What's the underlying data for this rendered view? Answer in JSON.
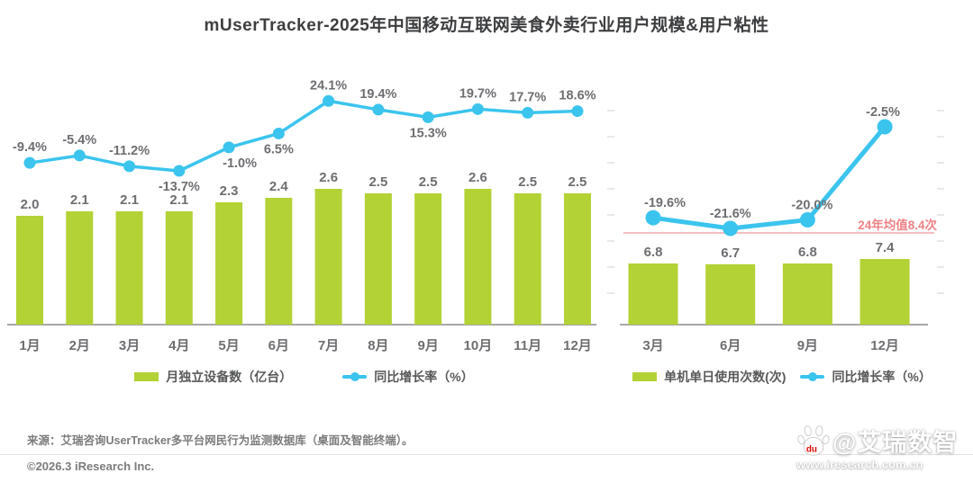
{
  "title": "mUserTracker-2025年中国移动互联网美食外卖行业用户规模&用户粘性",
  "colors": {
    "bar": "#b2d235",
    "line": "#3bc4ee",
    "value_label": "#6d6e71",
    "axis_label": "#6d6e71",
    "baseline": "#8a8b8d",
    "tick": "#e9e9e9",
    "avg_text_pink": "#ee8285",
    "avg_line_pink": "#f5bfc1",
    "title_text": "#3d3e40",
    "legend_text": "#58595b",
    "footer_text": "#7b7c7e"
  },
  "chart_data": [
    {
      "type": "bar+line",
      "categories": [
        "1月",
        "2月",
        "3月",
        "4月",
        "5月",
        "6月",
        "7月",
        "8月",
        "9月",
        "10月",
        "11月",
        "12月"
      ],
      "series": [
        {
          "name": "月独立设备数（亿台）",
          "type": "bar",
          "values": [
            2.0,
            2.1,
            2.1,
            2.1,
            2.3,
            2.4,
            2.6,
            2.5,
            2.5,
            2.6,
            2.5,
            2.5
          ],
          "labels": [
            "2.0",
            "2.1",
            "2.1",
            "2.1",
            "2.3",
            "2.4",
            "2.6",
            "2.5",
            "2.5",
            "2.6",
            "2.5",
            "2.5"
          ]
        },
        {
          "name": "同比增长率（%）",
          "type": "line",
          "values": [
            -9.4,
            -5.4,
            -11.2,
            -13.7,
            -1.0,
            6.5,
            24.1,
            19.4,
            15.3,
            19.7,
            17.7,
            18.6
          ],
          "labels": [
            "-9.4%",
            "-5.4%",
            "-11.2%",
            "-13.7%",
            "-1.0%",
            "6.5%",
            "24.1%",
            "19.4%",
            "15.3%",
            "19.7%",
            "17.7%",
            "18.6%"
          ]
        }
      ],
      "grid": false,
      "axes_visible": false,
      "legend_position": "bottom"
    },
    {
      "type": "bar+line",
      "categories": [
        "3月",
        "6月",
        "9月",
        "12月"
      ],
      "series": [
        {
          "name": "单机单日使用次数(次)",
          "type": "bar",
          "values": [
            6.8,
            6.7,
            6.8,
            7.4
          ],
          "labels": [
            "6.8",
            "6.7",
            "6.8",
            "7.4"
          ]
        },
        {
          "name": "同比增长率（%）",
          "type": "line",
          "values": [
            -19.6,
            -21.6,
            -20.0,
            -2.5
          ],
          "labels": [
            "-19.6%",
            "-21.6%",
            "-20.0%",
            "-2.5%"
          ]
        }
      ],
      "annotation": {
        "label": "24年均值8.4次",
        "value": 8.4
      },
      "grid": false,
      "axes_visible": false,
      "legend_position": "bottom"
    }
  ],
  "footer": {
    "source": "来源：艾瑞咨询UserTracker多平台网民行为监测数据库（桌面及智能终端）。",
    "copyright": "©2026.3 iResearch Inc.",
    "watermark": "@艾瑞数智",
    "website": "www.iresearch.com.cn"
  }
}
